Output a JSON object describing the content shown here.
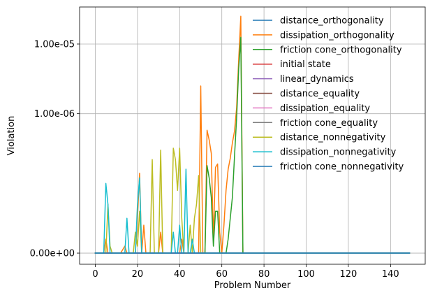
{
  "chart_data": {
    "type": "line",
    "title": "",
    "xlabel": "Problem Number",
    "ylabel": "Violation",
    "xlim": [
      -7.45,
      156.45
    ],
    "xticks": [
      0,
      20,
      40,
      60,
      80,
      100,
      120,
      140
    ],
    "yscale": "symlog",
    "ylim": [
      -1.6e-08,
      3.4e-05
    ],
    "yticks": [
      0,
      1e-06,
      1e-05
    ],
    "ytick_labels": [
      "0.00e+00",
      "1.00e-06",
      "1.00e-05"
    ],
    "grid": true,
    "legend_position": "upper right",
    "series": [
      {
        "name": "distance_orthogonality",
        "color": "#1f77b4",
        "points": [
          [
            0,
            0
          ],
          [
            149,
            0
          ]
        ]
      },
      {
        "name": "dissipation_orthogonality",
        "color": "#ff7f0e",
        "points": [
          [
            0,
            0
          ],
          [
            4,
            0
          ],
          [
            5,
            2e-08
          ],
          [
            6,
            0
          ],
          [
            12,
            0
          ],
          [
            14,
            1e-08
          ],
          [
            15,
            0
          ],
          [
            19,
            0
          ],
          [
            20,
            5e-08
          ],
          [
            21,
            1.4e-07
          ],
          [
            22,
            0
          ],
          [
            23,
            4e-08
          ],
          [
            24,
            0
          ],
          [
            30,
            0
          ],
          [
            31,
            3e-08
          ],
          [
            32,
            0
          ],
          [
            40,
            0
          ],
          [
            41,
            2e-08
          ],
          [
            42,
            0
          ],
          [
            49,
            0
          ],
          [
            50,
            2.5e-06
          ],
          [
            51,
            0
          ],
          [
            52,
            0
          ],
          [
            53,
            5.8e-07
          ],
          [
            54,
            4.2e-07
          ],
          [
            55,
            2.7e-07
          ],
          [
            56,
            2e-08
          ],
          [
            57,
            1.7e-07
          ],
          [
            58,
            1.9e-07
          ],
          [
            59,
            3e-08
          ],
          [
            60,
            0
          ],
          [
            61,
            4e-08
          ],
          [
            62,
            9e-08
          ],
          [
            63,
            1.6e-07
          ],
          [
            64,
            2.3e-07
          ],
          [
            65,
            3.8e-07
          ],
          [
            66,
            5.6e-07
          ],
          [
            67,
            1.2e-06
          ],
          [
            68,
            6e-06
          ],
          [
            69,
            2.5e-05
          ],
          [
            70,
            0
          ],
          [
            149,
            0
          ]
        ]
      },
      {
        "name": "friction cone_orthogonality",
        "color": "#2ca02c",
        "points": [
          [
            0,
            0
          ],
          [
            52,
            0
          ],
          [
            53,
            1.8e-07
          ],
          [
            54,
            1.2e-07
          ],
          [
            55,
            8e-08
          ],
          [
            56,
            1e-08
          ],
          [
            57,
            6e-08
          ],
          [
            58,
            6e-08
          ],
          [
            59,
            0
          ],
          [
            62,
            0
          ],
          [
            63,
            2e-08
          ],
          [
            64,
            5e-08
          ],
          [
            65,
            8e-08
          ],
          [
            66,
            2.4e-07
          ],
          [
            67,
            8.5e-07
          ],
          [
            68,
            4.4e-06
          ],
          [
            69,
            1.25e-05
          ],
          [
            70,
            0
          ],
          [
            149,
            0
          ]
        ]
      },
      {
        "name": "initial state",
        "color": "#d62728",
        "points": [
          [
            0,
            0
          ],
          [
            149,
            0
          ]
        ]
      },
      {
        "name": "linear_dynamics",
        "color": "#9467bd",
        "points": [
          [
            0,
            0
          ],
          [
            149,
            0
          ]
        ]
      },
      {
        "name": "distance_equality",
        "color": "#8c564b",
        "points": [
          [
            0,
            0
          ],
          [
            149,
            0
          ]
        ]
      },
      {
        "name": "dissipation_equality",
        "color": "#e377c2",
        "points": [
          [
            0,
            0
          ],
          [
            149,
            0
          ]
        ]
      },
      {
        "name": "friction cone_equality",
        "color": "#7f7f7f",
        "points": [
          [
            0,
            0
          ],
          [
            149,
            0
          ]
        ]
      },
      {
        "name": "distance_nonnegativity",
        "color": "#bcbd22",
        "points": [
          [
            0,
            0
          ],
          [
            5,
            0
          ],
          [
            6,
            7e-08
          ],
          [
            7,
            1e-08
          ],
          [
            8,
            0
          ],
          [
            18,
            0
          ],
          [
            19,
            3e-08
          ],
          [
            20,
            1e-08
          ],
          [
            21,
            6e-08
          ],
          [
            22,
            0
          ],
          [
            26,
            0
          ],
          [
            27,
            2.2e-07
          ],
          [
            28,
            0
          ],
          [
            30,
            0
          ],
          [
            31,
            3e-07
          ],
          [
            32,
            0
          ],
          [
            36,
            0
          ],
          [
            37,
            3.2e-07
          ],
          [
            38,
            2.2e-07
          ],
          [
            39,
            9e-08
          ],
          [
            40,
            3.2e-07
          ],
          [
            41,
            5e-08
          ],
          [
            42,
            0
          ],
          [
            44,
            0
          ],
          [
            45,
            4e-08
          ],
          [
            46,
            0
          ],
          [
            47,
            5e-08
          ],
          [
            48,
            7e-08
          ],
          [
            49,
            1.3e-07
          ],
          [
            50,
            0
          ],
          [
            149,
            0
          ]
        ]
      },
      {
        "name": "dissipation_nonnegativity",
        "color": "#17becf",
        "points": [
          [
            0,
            0
          ],
          [
            4,
            0
          ],
          [
            5,
            1e-07
          ],
          [
            6,
            7e-08
          ],
          [
            7,
            0
          ],
          [
            14,
            0
          ],
          [
            15,
            5e-08
          ],
          [
            16,
            0
          ],
          [
            19,
            0
          ],
          [
            20,
            7e-08
          ],
          [
            21,
            1.2e-07
          ],
          [
            22,
            0
          ],
          [
            36,
            0
          ],
          [
            37,
            3e-08
          ],
          [
            38,
            0
          ],
          [
            39,
            0
          ],
          [
            40,
            4e-08
          ],
          [
            41,
            0
          ],
          [
            42,
            0
          ],
          [
            43,
            1.6e-07
          ],
          [
            44,
            0
          ],
          [
            45,
            0
          ],
          [
            46,
            2e-08
          ],
          [
            47,
            0
          ],
          [
            149,
            0
          ]
        ]
      },
      {
        "name": "friction cone_nonnegativity",
        "color": "#1f77b4",
        "points": [
          [
            0,
            0
          ],
          [
            149,
            0
          ]
        ]
      }
    ]
  }
}
